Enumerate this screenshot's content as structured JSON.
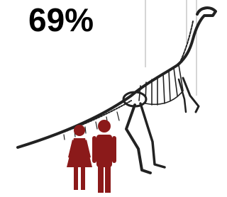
{
  "text": {
    "percentage": "69%"
  }
}
